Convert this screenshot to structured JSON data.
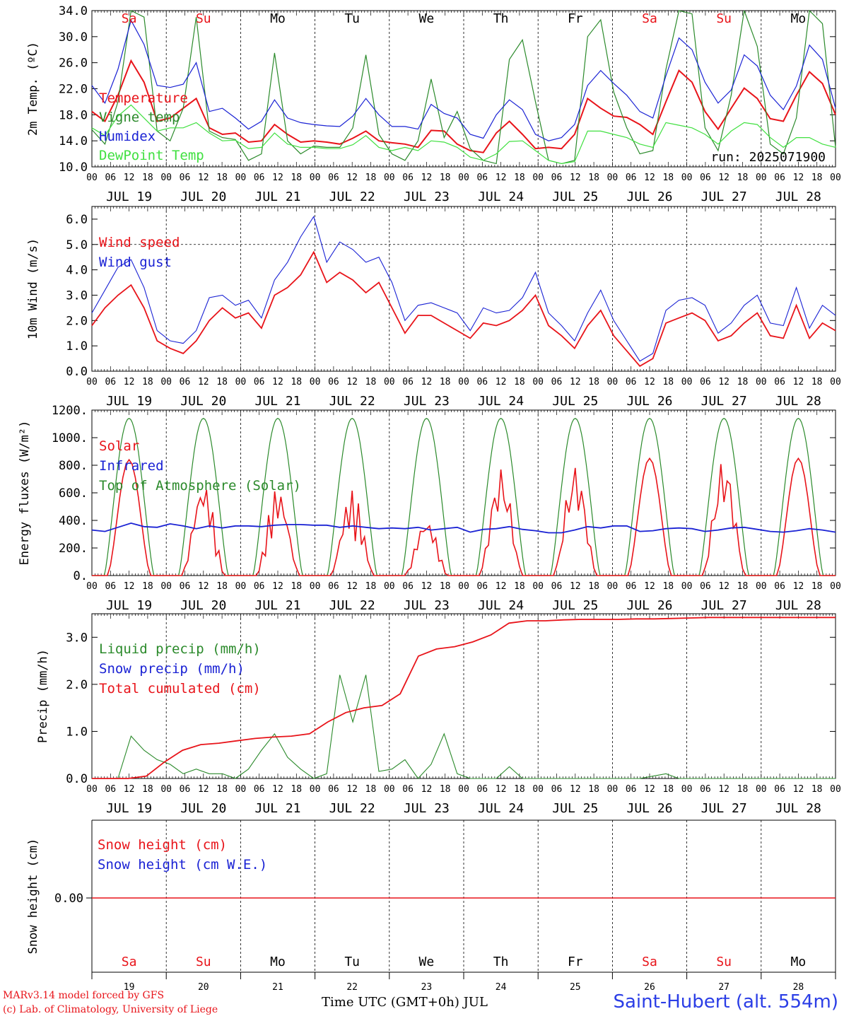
{
  "chart_data": [
    {
      "type": "line",
      "ylabel": "2m Temp. (ºC)",
      "ylim": [
        10,
        34
      ],
      "yticks": [
        "10.0",
        "14.0",
        "18.0",
        "22.0",
        "26.0",
        "30.0",
        "34.0"
      ],
      "grid": "vertical dashed at day boundaries",
      "annotation": "run: 2025071900",
      "days": [
        "Sa",
        "Su",
        "Mo",
        "Tu",
        "We",
        "Th",
        "Fr",
        "Sa",
        "Su",
        "Mo"
      ],
      "day_colors": [
        "#e8141a",
        "#e8141a",
        "#000000",
        "#000000",
        "#000000",
        "#000000",
        "#000000",
        "#e8141a",
        "#e8141a",
        "#000000"
      ],
      "series": [
        {
          "name": "Temperature",
          "color": "#e8141a",
          "values": [
            18.5,
            17,
            21,
            26.3,
            23,
            17,
            17.5,
            19,
            20.5,
            16,
            15,
            15.2,
            13.8,
            14,
            16.5,
            15,
            13.8,
            14,
            13.8,
            13.5,
            14.4,
            15.5,
            14,
            13.7,
            13.5,
            13,
            15.6,
            15.5,
            13.5,
            12.5,
            12.2,
            15.2,
            17,
            15,
            12.8,
            13,
            12.8,
            15,
            20.5,
            19,
            17.8,
            17.6,
            16.5,
            15,
            20,
            24.8,
            23,
            18.5,
            15.8,
            19,
            22.1,
            20.5,
            17.4,
            17,
            21,
            24.6,
            22.8,
            18
          ]
        },
        {
          "name": "Vigne temp",
          "color": "#2b8a2b",
          "values": [
            15.7,
            13.5,
            20,
            34,
            33,
            15.5,
            14,
            19,
            33,
            15.5,
            14.5,
            14.2,
            11,
            12,
            27.5,
            14,
            12,
            13.2,
            13,
            13,
            16,
            27.2,
            15,
            12,
            11,
            14,
            23.5,
            14.5,
            18.5,
            12.8,
            11,
            10.5,
            26.5,
            29.5,
            20,
            11,
            10.5,
            11,
            30,
            32.6,
            21.5,
            16,
            12,
            12.5,
            25,
            34,
            33.5,
            16,
            12.5,
            21,
            34,
            28.5,
            13.5,
            12,
            17.5,
            34,
            32,
            13
          ]
        },
        {
          "name": "Humidex",
          "color": "#1a22d4",
          "values": [
            22.5,
            19.8,
            25,
            32.5,
            28.8,
            22.5,
            22.2,
            22.7,
            26,
            18.5,
            19,
            17.5,
            15.8,
            17,
            20.3,
            17.5,
            16.8,
            16.5,
            16.3,
            16.2,
            17.8,
            20.5,
            18,
            16.2,
            16.2,
            15.8,
            19.6,
            18.2,
            17.5,
            15,
            14.4,
            18,
            20.3,
            18.8,
            15,
            14,
            14.5,
            16.5,
            22.5,
            24.8,
            22.8,
            21,
            18.5,
            17.5,
            24,
            29.8,
            28,
            23,
            19.8,
            21.8,
            27.2,
            25.5,
            21,
            18.8,
            22.4,
            28.7,
            26.5,
            19
          ]
        },
        {
          "name": "DewPoint Temp",
          "color": "#40e040",
          "values": [
            16,
            14.8,
            17.8,
            19.5,
            17.5,
            15.5,
            16,
            16,
            16.8,
            15.2,
            14,
            14.1,
            12.8,
            13,
            15.2,
            13.5,
            13,
            13,
            12.8,
            12.8,
            13.4,
            14.8,
            13,
            12.5,
            13,
            12.5,
            14,
            13.8,
            13,
            11.5,
            11,
            12,
            13.9,
            14,
            12.5,
            11,
            10.5,
            10.8,
            15.5,
            15.5,
            15,
            14.5,
            13.5,
            13,
            16.8,
            16.4,
            16,
            15,
            13.5,
            15.5,
            16.8,
            16.5,
            14.5,
            13,
            14.5,
            14.5,
            13.5,
            13
          ]
        }
      ]
    },
    {
      "type": "line",
      "ylabel": "10m Wind (m/s)",
      "ylim": [
        0,
        6.5
      ],
      "yticks": [
        "0.0",
        "1.0",
        "2.0",
        "3.0",
        "4.0",
        "5.0",
        "6.0"
      ],
      "hline": 5.0,
      "series": [
        {
          "name": "Wind speed",
          "color": "#e8141a",
          "values": [
            1.8,
            2.5,
            3.0,
            3.4,
            2.5,
            1.2,
            0.9,
            0.7,
            1.2,
            2.0,
            2.5,
            2.1,
            2.3,
            1.7,
            3.0,
            3.3,
            3.8,
            4.7,
            3.5,
            3.9,
            3.6,
            3.1,
            3.5,
            2.5,
            1.5,
            2.2,
            2.2,
            1.9,
            1.6,
            1.3,
            1.9,
            1.8,
            2.0,
            2.4,
            3.0,
            1.8,
            1.4,
            0.9,
            1.8,
            2.4,
            1.4,
            0.8,
            0.2,
            0.5,
            1.9,
            2.1,
            2.3,
            2.0,
            1.2,
            1.4,
            1.9,
            2.3,
            1.4,
            1.3,
            2.6,
            1.3,
            1.9,
            1.6
          ]
        },
        {
          "name": "Wind gust",
          "color": "#1a22d4",
          "values": [
            2.3,
            3.2,
            4.1,
            4.4,
            3.3,
            1.6,
            1.2,
            1.1,
            1.6,
            2.9,
            3.0,
            2.6,
            2.8,
            2.1,
            3.6,
            4.3,
            5.3,
            6.1,
            4.3,
            5.1,
            4.8,
            4.3,
            4.5,
            3.5,
            2.0,
            2.6,
            2.7,
            2.5,
            2.3,
            1.6,
            2.5,
            2.3,
            2.4,
            2.9,
            3.9,
            2.3,
            1.8,
            1.2,
            2.3,
            3.2,
            2.0,
            1.2,
            0.4,
            0.7,
            2.4,
            2.8,
            2.9,
            2.6,
            1.5,
            1.9,
            2.6,
            3.0,
            1.9,
            1.8,
            3.3,
            1.7,
            2.6,
            2.2
          ]
        }
      ]
    },
    {
      "type": "line",
      "ylabel": "Energy fluxes (W/m²)",
      "ylim": [
        0,
        1200
      ],
      "yticks": [
        "0.",
        "200.",
        "400.",
        "600.",
        "800.",
        "1000.",
        "1200."
      ],
      "series": [
        {
          "name": "Solar",
          "color": "#e8141a",
          "days_peaks": [
            [
              0.5,
              840
            ],
            [
              0.45,
              690
            ],
            [
              0.55,
              650
            ],
            [
              0.6,
              620
            ],
            [
              0.55,
              420
            ],
            [
              0.6,
              780
            ],
            [
              0.55,
              810
            ],
            [
              0.5,
              850
            ],
            [
              0.5,
              850
            ],
            [
              0.5,
              850
            ]
          ]
        },
        {
          "name": "Infrared",
          "color": "#1a22d4",
          "values": [
            330,
            320,
            350,
            380,
            355,
            350,
            375,
            360,
            340,
            360,
            345,
            360,
            360,
            355,
            365,
            370,
            370,
            365,
            365,
            350,
            360,
            350,
            340,
            345,
            340,
            350,
            330,
            340,
            350,
            315,
            335,
            340,
            355,
            335,
            325,
            310,
            310,
            330,
            355,
            345,
            360,
            360,
            320,
            325,
            340,
            345,
            340,
            320,
            330,
            345,
            350,
            335,
            320,
            315,
            325,
            340,
            330,
            315
          ]
        },
        {
          "name": "Top of Atmosphere (Solar)",
          "color": "#2b8a2b",
          "peak": 1140
        }
      ]
    },
    {
      "type": "line",
      "ylabel": "Precip (mm/h)",
      "ylim": [
        0,
        3.5
      ],
      "yticks": [
        "0.0",
        "1.0",
        "2.0",
        "3.0"
      ],
      "series": [
        {
          "name": "Liquid precip (mm/h)",
          "color": "#2b8a2b",
          "values": [
            0,
            0,
            0,
            0.9,
            0.6,
            0.4,
            0.3,
            0.1,
            0.2,
            0.1,
            0.1,
            0,
            0.2,
            0.6,
            0.95,
            0.45,
            0.2,
            0,
            0.1,
            2.2,
            1.2,
            2.2,
            0.15,
            0.2,
            0.4,
            0,
            0.3,
            0.95,
            0.1,
            0,
            0,
            0,
            0.25,
            0,
            0,
            0,
            0,
            0,
            0,
            0,
            0,
            0,
            0,
            0.05,
            0.1,
            0,
            0,
            0,
            0,
            0,
            0,
            0,
            0,
            0,
            0,
            0,
            0,
            0
          ]
        },
        {
          "name": "Snow precip (mm/h)",
          "color": "#1a22d4",
          "values": []
        },
        {
          "name": "Total cumulated (cm)",
          "color": "#e8141a",
          "values": [
            0,
            0,
            0,
            0.05,
            0.35,
            0.6,
            0.72,
            0.75,
            0.8,
            0.85,
            0.88,
            0.9,
            0.95,
            1.2,
            1.4,
            1.5,
            1.55,
            1.8,
            2.6,
            2.75,
            2.8,
            2.9,
            3.05,
            3.3,
            3.35,
            3.35,
            3.37,
            3.38,
            3.38,
            3.38,
            3.39,
            3.39,
            3.4,
            3.41,
            3.42,
            3.42,
            3.42,
            3.42,
            3.42,
            3.42,
            3.42,
            3.42
          ]
        }
      ]
    },
    {
      "type": "line",
      "ylabel": "Snow height (cm)",
      "ytick": "0.00",
      "series": [
        {
          "name": "Snow height (cm)",
          "color": "#e8141a",
          "values": [
            0
          ]
        },
        {
          "name": "Snow height (cm W.E.)",
          "color": "#1a22d4",
          "values": []
        }
      ]
    }
  ],
  "x_axis": {
    "hour_ticks": [
      "00",
      "06",
      "12",
      "18"
    ],
    "dates": [
      "JUL 19",
      "JUL 20",
      "JUL 21",
      "JUL 22",
      "JUL 23",
      "JUL 24",
      "JUL 25",
      "JUL 26",
      "JUL 27",
      "JUL 28"
    ],
    "bottom_days": [
      "Sa",
      "Su",
      "Mo",
      "Tu",
      "We",
      "Th",
      "Fr",
      "Sa",
      "Su",
      "Mo"
    ],
    "bottom_day_numbers": [
      "19",
      "20",
      "21",
      "22",
      "23",
      "24",
      "25",
      "26",
      "27",
      "28"
    ],
    "title": "Time UTC (GMT+0h) JUL"
  },
  "footer": {
    "model": "MARv3.14 model forced by GFS",
    "credit": "(c) Lab. of Climatology, University of Liege",
    "station": "Saint-Hubert (alt. 554m)"
  }
}
